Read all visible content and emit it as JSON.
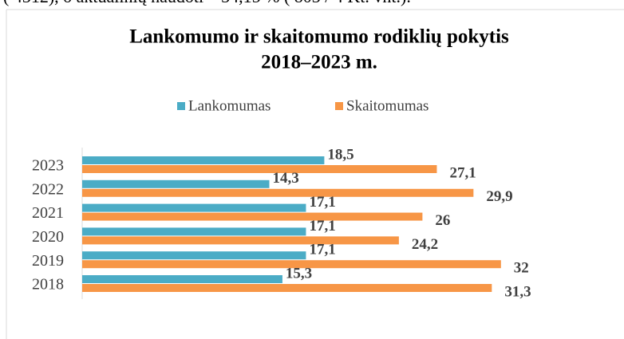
{
  "note": "( 4312), o aktualinių naudoti – 34,15 % ( 803 / 4 Kt. vnt.).",
  "chart_data": {
    "type": "hbar",
    "title": [
      "Lankomumo ir skaitomumo rodiklių pokytis",
      "2018–2023 m."
    ],
    "categories": [
      "2023",
      "2022",
      "2021",
      "2020",
      "2019",
      "2018"
    ],
    "series": [
      {
        "name": "Lankomumas",
        "color": "#4bacc6",
        "values": [
          18.5,
          14.3,
          17.1,
          17.1,
          17.1,
          15.3
        ],
        "value_labels": [
          "18,5",
          "14,3",
          "17,1",
          "17,1",
          "17,1",
          "15,3"
        ]
      },
      {
        "name": "Skaitomumas",
        "color": "#f79646",
        "values": [
          27.1,
          29.9,
          26,
          24.2,
          32,
          31.3
        ],
        "value_labels": [
          "27,1",
          "29,9",
          "26",
          "24,2",
          "32",
          "31,3"
        ]
      }
    ],
    "xlim": [
      0,
      40
    ],
    "legend": "top"
  }
}
